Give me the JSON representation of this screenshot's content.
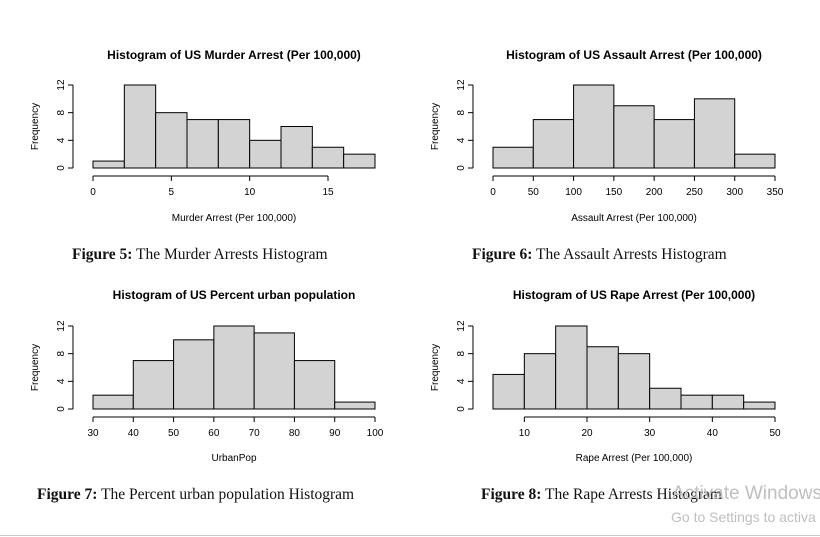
{
  "chart_data": [
    {
      "type": "bar",
      "title": "Histogram of US Murder Arrest (Per 100,000)",
      "xlabel": "Murder Arrest (Per 100,000)",
      "ylabel": "Frequency",
      "bin_edges": [
        0,
        2,
        4,
        6,
        8,
        10,
        12,
        14,
        16,
        18
      ],
      "values": [
        1,
        12,
        8,
        7,
        7,
        4,
        6,
        3,
        2
      ],
      "xticks": [
        0,
        5,
        10,
        15
      ],
      "yticks": [
        0,
        4,
        8,
        12
      ],
      "xlim": [
        0,
        18
      ],
      "ylim": [
        0,
        12
      ]
    },
    {
      "type": "bar",
      "title": "Histogram of US Assault Arrest (Per 100,000)",
      "xlabel": "Assault Arrest (Per 100,000)",
      "ylabel": "Frequency",
      "bin_edges": [
        0,
        50,
        100,
        150,
        200,
        250,
        300,
        350
      ],
      "values": [
        3,
        7,
        12,
        9,
        7,
        10,
        2
      ],
      "xticks": [
        0,
        50,
        100,
        150,
        200,
        250,
        300,
        350
      ],
      "yticks": [
        0,
        4,
        8,
        12
      ],
      "xlim": [
        0,
        350
      ],
      "ylim": [
        0,
        12
      ]
    },
    {
      "type": "bar",
      "title": "Histogram of US Percent urban population",
      "xlabel": "UrbanPop",
      "ylabel": "Frequency",
      "bin_edges": [
        30,
        40,
        50,
        60,
        70,
        80,
        90,
        100
      ],
      "values": [
        2,
        7,
        10,
        12,
        11,
        7,
        1
      ],
      "xticks": [
        30,
        40,
        50,
        60,
        70,
        80,
        90,
        100
      ],
      "yticks": [
        0,
        4,
        8,
        12
      ],
      "xlim": [
        30,
        100
      ],
      "ylim": [
        0,
        12
      ]
    },
    {
      "type": "bar",
      "title": "Histogram of US Rape Arrest (Per 100,000)",
      "xlabel": "Rape Arrest (Per 100,000)",
      "ylabel": "Frequency",
      "bin_edges": [
        5,
        10,
        15,
        20,
        25,
        30,
        35,
        40,
        45,
        50
      ],
      "values": [
        5,
        8,
        12,
        9,
        8,
        3,
        2,
        2,
        1
      ],
      "xticks": [
        10,
        20,
        30,
        40,
        50
      ],
      "yticks": [
        0,
        4,
        8,
        12
      ],
      "xlim": [
        5,
        50
      ],
      "ylim": [
        0,
        12
      ]
    }
  ],
  "captions": [
    {
      "label": "Figure 5:",
      "text": " The Murder Arrests Histogram"
    },
    {
      "label": "Figure 6:",
      "text": " The Assault Arrests Histogram"
    },
    {
      "label": "Figure 7:",
      "text": " The Percent urban population Histogram"
    },
    {
      "label": "Figure 8:",
      "text": " The Rape Arrests Histogram"
    }
  ],
  "watermark": {
    "line1": "Activate Windows",
    "line2": "Go to Settings to activa"
  },
  "colors": {
    "bar_fill": "#d3d3d3",
    "bar_stroke": "#000000",
    "text": "#000000",
    "watermark": "#bfbfbf"
  }
}
